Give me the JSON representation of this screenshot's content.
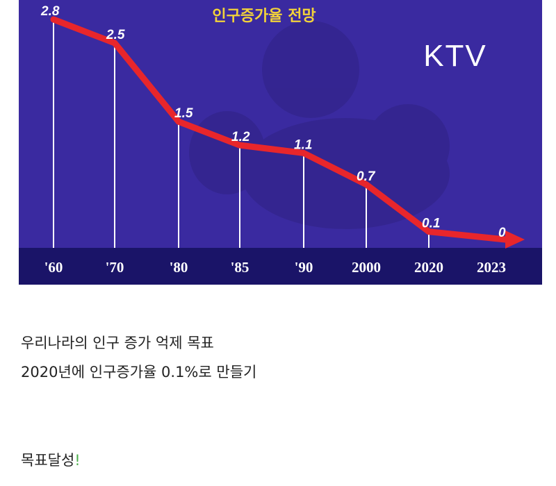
{
  "chart_data": {
    "type": "line",
    "title": "인구증가율 전망",
    "categories": [
      "'60",
      "'70",
      "'80",
      "'85",
      "'90",
      "2000",
      "2020",
      "2023"
    ],
    "values": [
      2.8,
      2.5,
      1.5,
      1.2,
      1.1,
      0.7,
      0.1,
      0
    ],
    "data_labels": [
      "2.8",
      "2.5",
      "1.5",
      "1.2",
      "1.1",
      "0.7",
      "0.1",
      "0"
    ],
    "ylim": [
      0,
      2.8
    ],
    "grid": false,
    "highlight_category": "2023"
  },
  "watermark": "KTV",
  "colors": {
    "background": "#3a2aa0",
    "axis_band": "#1a1468",
    "line": "#e8262b",
    "title": "#f2d23a",
    "highlight": "#e0302c"
  },
  "caption": {
    "line1": "우리나라의 인구 증가 억제 목표",
    "line2": "2020년에 인구증가율 0.1%로 만들기",
    "line3": "목표달성",
    "line3_emphasis": "!"
  }
}
